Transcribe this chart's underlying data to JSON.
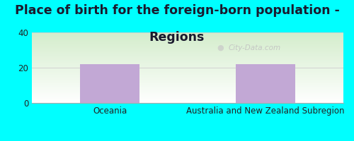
{
  "title_line1": "Place of birth for the foreign-born population -",
  "title_line2": "Regions",
  "categories": [
    "Oceania",
    "Australia and New Zealand Subregion"
  ],
  "values": [
    22,
    22
  ],
  "bar_color": "#c2a8d5",
  "background_color": "#00ffff",
  "grad_color_topleft": "#d4edcc",
  "grad_color_bottomright": "#f0f8ea",
  "grad_color_white": "#ffffff",
  "ylim": [
    0,
    40
  ],
  "yticks": [
    0,
    20,
    40
  ],
  "watermark": "City-Data.com",
  "title_fontsize": 12.5,
  "tick_fontsize": 8.5,
  "title_color": "#1a1a2e"
}
